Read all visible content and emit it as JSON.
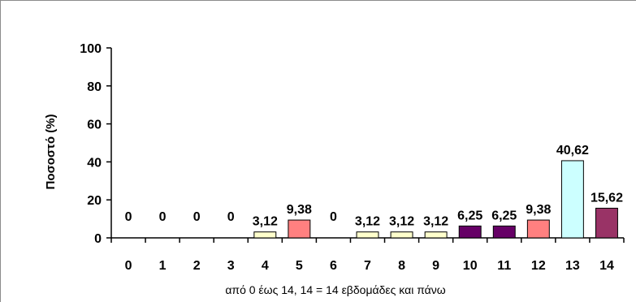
{
  "chart_data": {
    "type": "bar",
    "title": "",
    "xlabel": "από 0 έως 14, 14 = 14 εβδομάδες και πάνω",
    "ylabel": "Ποσοστό (%)",
    "ylim": [
      0,
      100
    ],
    "yticks": [
      "0",
      "20",
      "40",
      "60",
      "80",
      "100"
    ],
    "categories": [
      "0",
      "1",
      "2",
      "3",
      "4",
      "5",
      "6",
      "7",
      "8",
      "9",
      "10",
      "11",
      "12",
      "13",
      "14"
    ],
    "values": [
      0,
      0,
      0,
      0,
      3.12,
      9.38,
      0,
      3.12,
      3.12,
      3.12,
      6.25,
      6.25,
      9.38,
      40.62,
      15.62
    ],
    "data_labels": [
      "0",
      "0",
      "0",
      "0",
      "3,12",
      "9,38",
      "0",
      "3,12",
      "3,12",
      "3,12",
      "6,25",
      "6,25",
      "9,38",
      "40,62",
      "15,62"
    ],
    "bar_colors": [
      "#ffffcc",
      "#ffffcc",
      "#ffffcc",
      "#ffffcc",
      "#ffffcc",
      "#ff8080",
      "#ffffcc",
      "#ffffcc",
      "#ffffcc",
      "#ffffcc",
      "#660066",
      "#660066",
      "#ff8080",
      "#ccffff",
      "#993366"
    ],
    "bar_stroke": "#000000",
    "grid": false,
    "legend": "none"
  }
}
